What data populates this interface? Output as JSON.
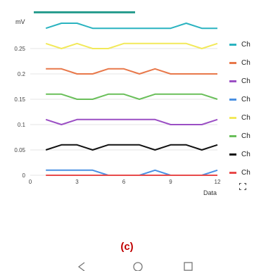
{
  "chart_data": {
    "type": "line",
    "ylabel": "mV",
    "xlabel": "Data",
    "xlim": [
      0,
      12
    ],
    "ylim": [
      0,
      0.3
    ],
    "x_ticks": [
      "0",
      "3",
      "6",
      "9",
      "12"
    ],
    "y_ticks": [
      "0",
      "0.05",
      "0.1",
      "0.15",
      "0.2",
      "0.25"
    ],
    "x": [
      1,
      2,
      3,
      4,
      5,
      6,
      7,
      8,
      9,
      10,
      11,
      12
    ],
    "grid": "horizontal",
    "legend_position": "right",
    "series": [
      {
        "name": "Ch",
        "color": "#2ab3c0",
        "values": [
          0.29,
          0.3,
          0.3,
          0.29,
          0.29,
          0.29,
          0.29,
          0.29,
          0.29,
          0.3,
          0.29,
          0.29
        ]
      },
      {
        "name": "Ch",
        "color": "#e8784a",
        "values": [
          0.21,
          0.21,
          0.2,
          0.2,
          0.21,
          0.21,
          0.2,
          0.21,
          0.2,
          0.2,
          0.2,
          0.2
        ]
      },
      {
        "name": "Ch",
        "color": "#9b4fc4",
        "values": [
          0.11,
          0.1,
          0.11,
          0.11,
          0.11,
          0.11,
          0.11,
          0.11,
          0.1,
          0.1,
          0.1,
          0.11
        ]
      },
      {
        "name": "Ch",
        "color": "#4a90e2",
        "values": [
          0.01,
          0.01,
          0.01,
          0.01,
          0.0,
          0.0,
          0.0,
          0.01,
          0.0,
          0.0,
          0.0,
          0.01
        ]
      },
      {
        "name": "Ch",
        "color": "#f2e95a",
        "values": [
          0.26,
          0.25,
          0.26,
          0.25,
          0.25,
          0.26,
          0.26,
          0.26,
          0.26,
          0.26,
          0.25,
          0.26
        ]
      },
      {
        "name": "Ch",
        "color": "#6abf5a",
        "values": [
          0.16,
          0.16,
          0.15,
          0.15,
          0.16,
          0.16,
          0.15,
          0.16,
          0.16,
          0.16,
          0.16,
          0.15
        ]
      },
      {
        "name": "Ch",
        "color": "#111111",
        "values": [
          0.05,
          0.06,
          0.06,
          0.05,
          0.06,
          0.06,
          0.06,
          0.05,
          0.06,
          0.06,
          0.05,
          0.06
        ]
      },
      {
        "name": "Ch",
        "color": "#e84a4a",
        "values": [
          0.0,
          0.0,
          0.0,
          0.0,
          0.0,
          0.0,
          0.0,
          0.0,
          0.0,
          0.0,
          0.0,
          0.0
        ]
      }
    ]
  },
  "figure": {
    "panel_label": "(c)"
  },
  "icons": {
    "fullscreen": "fullscreen-icon",
    "nav_back": "back-triangle-icon",
    "nav_home": "home-circle-icon",
    "nav_recents": "recents-square-icon"
  }
}
